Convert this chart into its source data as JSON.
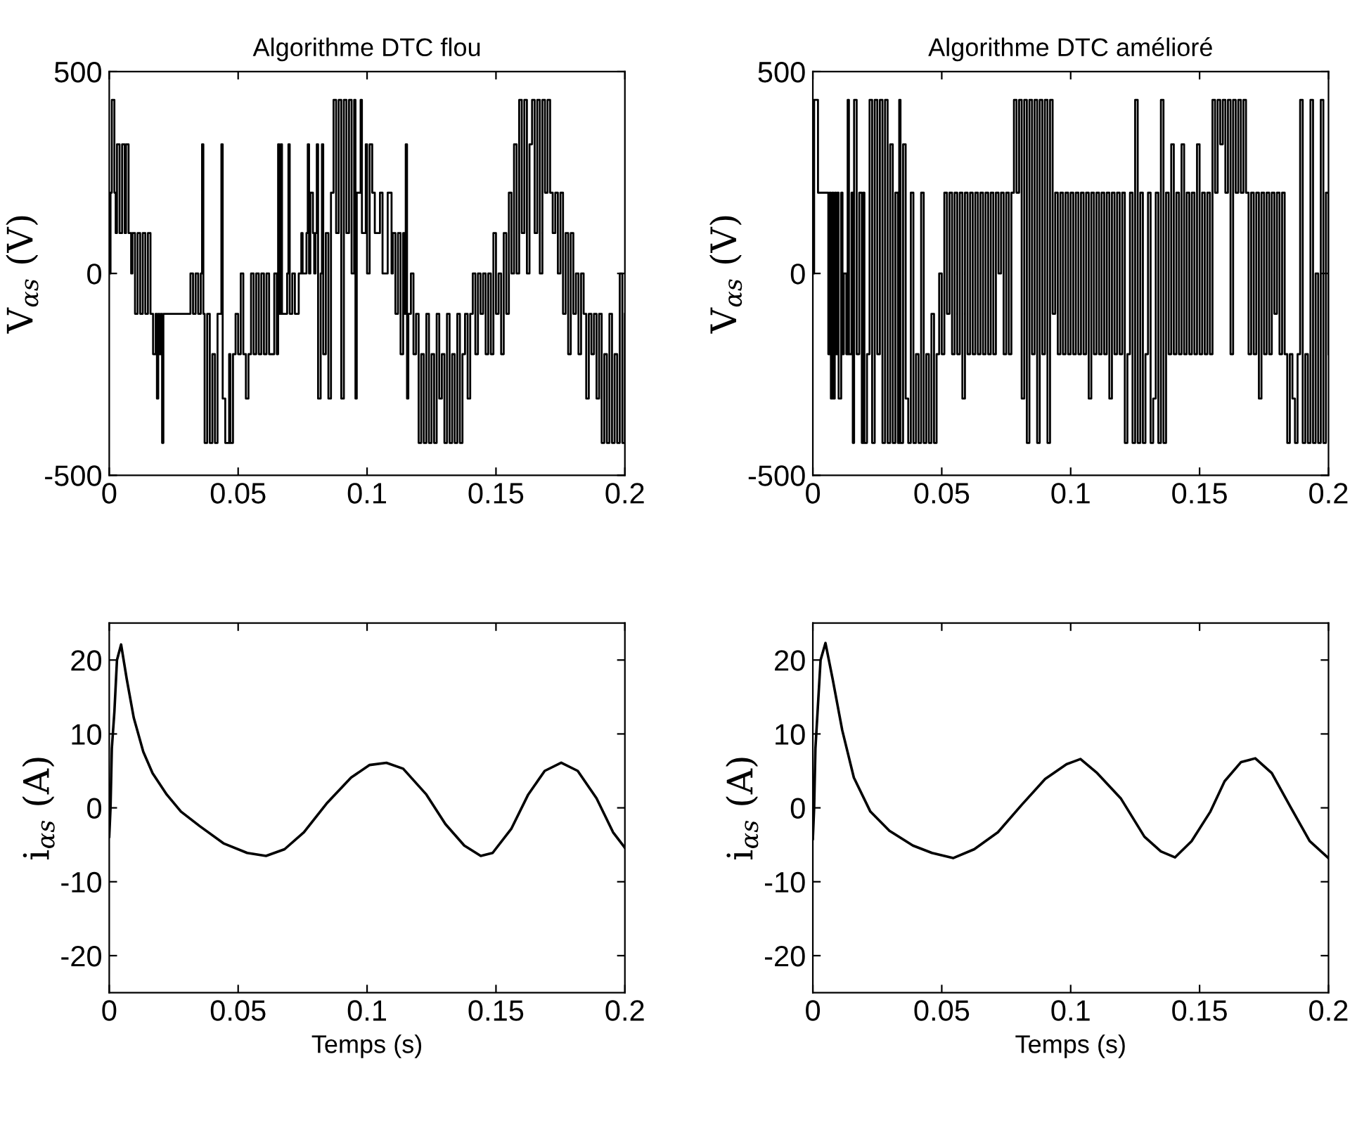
{
  "chart_data": [
    {
      "type": "step",
      "title": "Algorithme DTC flou",
      "ylabel": "V$_{αs}$ (V)",
      "color": "#000000",
      "xlim": [
        0,
        0.2
      ],
      "ylim": [
        -500,
        500
      ],
      "xticks": [
        0,
        0.05,
        0.1,
        0.15,
        0.2
      ],
      "yticks": [
        -500,
        0,
        500
      ],
      "grid": false,
      "x": [
        0,
        0.0005,
        0.001,
        0.002,
        0.0025,
        0.003,
        0.004,
        0.005,
        0.006,
        0.0065,
        0.0075,
        0.0085,
        0.009,
        0.01,
        0.011,
        0.012,
        0.013,
        0.014,
        0.015,
        0.016,
        0.017,
        0.018,
        0.0185,
        0.019,
        0.0195,
        0.02,
        0.0205,
        0.021,
        0.0315,
        0.0325,
        0.0335,
        0.0345,
        0.0355,
        0.036,
        0.0365,
        0.037,
        0.038,
        0.039,
        0.04,
        0.041,
        0.042,
        0.0435,
        0.044,
        0.045,
        0.0465,
        0.047,
        0.048,
        0.049,
        0.05,
        0.051,
        0.052,
        0.053,
        0.054,
        0.055,
        0.056,
        0.057,
        0.058,
        0.059,
        0.06,
        0.061,
        0.062,
        0.064,
        0.065,
        0.0655,
        0.066,
        0.0665,
        0.067,
        0.069,
        0.0695,
        0.07,
        0.071,
        0.072,
        0.0735,
        0.0745,
        0.075,
        0.0765,
        0.077,
        0.0775,
        0.078,
        0.079,
        0.0795,
        0.08,
        0.0805,
        0.081,
        0.082,
        0.0825,
        0.083,
        0.084,
        0.085,
        0.086,
        0.087,
        0.088,
        0.089,
        0.09,
        0.091,
        0.092,
        0.093,
        0.094,
        0.095,
        0.0955,
        0.096,
        0.0975,
        0.098,
        0.0995,
        0.1,
        0.101,
        0.102,
        0.103,
        0.105,
        0.106,
        0.108,
        0.1095,
        0.11,
        0.111,
        0.112,
        0.113,
        0.114,
        0.1145,
        0.115,
        0.1155,
        0.116,
        0.117,
        0.118,
        0.119,
        0.12,
        0.121,
        0.122,
        0.123,
        0.124,
        0.125,
        0.126,
        0.127,
        0.128,
        0.129,
        0.13,
        0.131,
        0.132,
        0.133,
        0.134,
        0.135,
        0.136,
        0.137,
        0.138,
        0.139,
        0.14,
        0.141,
        0.142,
        0.143,
        0.144,
        0.145,
        0.146,
        0.147,
        0.148,
        0.149,
        0.15,
        0.151,
        0.152,
        0.153,
        0.154,
        0.155,
        0.156,
        0.157,
        0.158,
        0.159,
        0.16,
        0.161,
        0.162,
        0.163,
        0.164,
        0.165,
        0.166,
        0.167,
        0.168,
        0.169,
        0.17,
        0.171,
        0.172,
        0.173,
        0.174,
        0.175,
        0.176,
        0.177,
        0.178,
        0.179,
        0.18,
        0.181,
        0.182,
        0.183,
        0.184,
        0.185,
        0.186,
        0.187,
        0.188,
        0.189,
        0.19,
        0.191,
        0.192,
        0.193,
        0.194,
        0.195,
        0.196,
        0.197,
        0.198,
        0.199,
        0.2
      ],
      "values": [
        0,
        200,
        430,
        200,
        100,
        320,
        100,
        320,
        100,
        320,
        100,
        0,
        100,
        -100,
        100,
        -100,
        100,
        -100,
        100,
        -100,
        -200,
        -100,
        -310,
        -100,
        -200,
        -100,
        -420,
        -100,
        0,
        -100,
        0,
        -100,
        0,
        320,
        -100,
        -420,
        -100,
        -420,
        -200,
        -420,
        -100,
        320,
        -310,
        -420,
        -200,
        -420,
        -200,
        -100,
        -200,
        0,
        -200,
        -310,
        -200,
        0,
        -200,
        0,
        -200,
        0,
        -200,
        0,
        -200,
        0,
        -200,
        320,
        -100,
        320,
        -100,
        0,
        320,
        -100,
        0,
        -100,
        0,
        100,
        0,
        100,
        320,
        0,
        200,
        100,
        0,
        100,
        320,
        -310,
        0,
        320,
        -200,
        100,
        -310,
        200,
        430,
        100,
        430,
        -310,
        430,
        100,
        430,
        0,
        430,
        -310,
        200,
        430,
        100,
        320,
        0,
        320,
        200,
        100,
        200,
        0,
        200,
        0,
        100,
        -100,
        100,
        -200,
        100,
        -100,
        320,
        -310,
        -100,
        0,
        -200,
        -100,
        -420,
        -200,
        -420,
        -100,
        -420,
        -200,
        -420,
        -100,
        -310,
        -200,
        -420,
        -100,
        -420,
        -200,
        -420,
        -100,
        -420,
        -200,
        -100,
        -310,
        -100,
        0,
        -200,
        0,
        -100,
        0,
        -200,
        0,
        -200,
        100,
        -100,
        0,
        -200,
        100,
        -100,
        200,
        0,
        320,
        0,
        430,
        100,
        430,
        0,
        320,
        430,
        100,
        430,
        0,
        430,
        200,
        430,
        200,
        100,
        200,
        0,
        200,
        -100,
        100,
        -200,
        100,
        -100,
        0,
        -200,
        0,
        -100,
        -310,
        -100,
        -200,
        -100,
        -310,
        -100,
        -420,
        -200,
        -420,
        -100,
        -420,
        -200,
        -420,
        0,
        -420,
        -100
      ]
    },
    {
      "type": "step",
      "title": "Algorithme DTC amélioré",
      "ylabel": "V$_{αs}$ (V)",
      "color": "#000000",
      "xlim": [
        0,
        0.2
      ],
      "ylim": [
        -500,
        500
      ],
      "xticks": [
        0,
        0.05,
        0.1,
        0.15,
        0.2
      ],
      "yticks": [
        -500,
        0,
        500
      ],
      "grid": false,
      "x": [
        0,
        0.0005,
        0.002,
        0.006,
        0.0065,
        0.007,
        0.0075,
        0.008,
        0.0085,
        0.009,
        0.0095,
        0.01,
        0.011,
        0.0115,
        0.012,
        0.013,
        0.0135,
        0.014,
        0.015,
        0.0155,
        0.016,
        0.017,
        0.018,
        0.019,
        0.0195,
        0.02,
        0.021,
        0.022,
        0.023,
        0.024,
        0.025,
        0.026,
        0.027,
        0.028,
        0.029,
        0.03,
        0.031,
        0.032,
        0.033,
        0.0335,
        0.034,
        0.035,
        0.036,
        0.037,
        0.038,
        0.039,
        0.04,
        0.041,
        0.042,
        0.043,
        0.044,
        0.045,
        0.046,
        0.047,
        0.048,
        0.049,
        0.05,
        0.051,
        0.052,
        0.053,
        0.054,
        0.055,
        0.056,
        0.057,
        0.058,
        0.059,
        0.06,
        0.061,
        0.062,
        0.063,
        0.064,
        0.065,
        0.066,
        0.067,
        0.068,
        0.069,
        0.07,
        0.071,
        0.072,
        0.073,
        0.074,
        0.075,
        0.076,
        0.077,
        0.078,
        0.079,
        0.08,
        0.081,
        0.082,
        0.083,
        0.084,
        0.085,
        0.086,
        0.087,
        0.088,
        0.089,
        0.09,
        0.091,
        0.092,
        0.093,
        0.094,
        0.095,
        0.096,
        0.097,
        0.098,
        0.099,
        0.1,
        0.101,
        0.102,
        0.103,
        0.104,
        0.105,
        0.106,
        0.107,
        0.108,
        0.109,
        0.11,
        0.111,
        0.112,
        0.113,
        0.114,
        0.115,
        0.116,
        0.117,
        0.118,
        0.119,
        0.12,
        0.121,
        0.122,
        0.123,
        0.124,
        0.125,
        0.126,
        0.127,
        0.128,
        0.129,
        0.13,
        0.131,
        0.132,
        0.133,
        0.134,
        0.135,
        0.136,
        0.137,
        0.138,
        0.139,
        0.14,
        0.141,
        0.142,
        0.143,
        0.144,
        0.145,
        0.146,
        0.147,
        0.148,
        0.149,
        0.15,
        0.151,
        0.152,
        0.153,
        0.154,
        0.155,
        0.156,
        0.157,
        0.158,
        0.159,
        0.16,
        0.161,
        0.162,
        0.163,
        0.164,
        0.165,
        0.166,
        0.167,
        0.168,
        0.169,
        0.17,
        0.171,
        0.172,
        0.173,
        0.174,
        0.175,
        0.176,
        0.177,
        0.178,
        0.179,
        0.18,
        0.181,
        0.182,
        0.183,
        0.184,
        0.185,
        0.186,
        0.187,
        0.188,
        0.189,
        0.19,
        0.191,
        0.192,
        0.193,
        0.194,
        0.195,
        0.196,
        0.197,
        0.198,
        0.199,
        0.2
      ],
      "values": [
        0,
        430,
        200,
        -200,
        200,
        -310,
        200,
        -310,
        200,
        -200,
        200,
        -310,
        200,
        -200,
        0,
        -200,
        430,
        -200,
        200,
        -420,
        430,
        -200,
        200,
        -420,
        200,
        -420,
        -200,
        430,
        -420,
        430,
        -200,
        430,
        -420,
        430,
        -420,
        320,
        -420,
        200,
        -420,
        430,
        -420,
        320,
        -310,
        -420,
        200,
        -420,
        -200,
        -420,
        200,
        -420,
        -200,
        -420,
        -100,
        -420,
        -200,
        0,
        -200,
        200,
        -100,
        200,
        -200,
        200,
        -200,
        200,
        -310,
        200,
        -200,
        200,
        -200,
        200,
        -200,
        200,
        -200,
        200,
        -200,
        200,
        -200,
        200,
        0,
        200,
        -200,
        200,
        -200,
        200,
        430,
        200,
        430,
        -310,
        430,
        -420,
        430,
        -200,
        430,
        -420,
        430,
        -200,
        430,
        -420,
        430,
        -100,
        200,
        -200,
        200,
        -200,
        200,
        -200,
        200,
        -200,
        200,
        -200,
        200,
        -200,
        200,
        -310,
        200,
        -200,
        200,
        -200,
        200,
        -200,
        200,
        -310,
        200,
        -200,
        200,
        -200,
        200,
        -420,
        -200,
        200,
        -420,
        430,
        -420,
        200,
        -420,
        -200,
        200,
        -420,
        -310,
        200,
        -420,
        430,
        -420,
        200,
        -200,
        320,
        -200,
        200,
        -200,
        320,
        -200,
        200,
        -200,
        200,
        -200,
        320,
        -200,
        200,
        -200,
        200,
        -200,
        430,
        200,
        430,
        320,
        430,
        200,
        430,
        -200,
        430,
        200,
        430,
        200,
        430,
        200,
        -200,
        200,
        -200,
        200,
        -310,
        200,
        -200,
        200,
        -200,
        200,
        -100,
        200,
        -200,
        200,
        -200,
        -420,
        -200,
        -310,
        -420,
        -200,
        430,
        -420,
        -200,
        -420,
        430,
        -420,
        0,
        -420,
        430,
        -420,
        200,
        -200
      ]
    },
    {
      "type": "line",
      "xlabel": "Temps (s)",
      "ylabel": "i$_{αs}$ (A)",
      "color": "#000000",
      "xlim": [
        0,
        0.2
      ],
      "ylim": [
        -25,
        25
      ],
      "xticks": [
        0,
        0.05,
        0.1,
        0.15,
        0.2
      ],
      "yticks": [
        -20,
        -10,
        0,
        10,
        20
      ],
      "grid": false,
      "x": [
        0,
        0.0005,
        0.001,
        0.002,
        0.003,
        0.0046,
        0.0068,
        0.0095,
        0.0132,
        0.0168,
        0.0223,
        0.0278,
        0.0352,
        0.0443,
        0.0535,
        0.0608,
        0.068,
        0.0755,
        0.0846,
        0.0938,
        0.101,
        0.1075,
        0.114,
        0.123,
        0.1304,
        0.1377,
        0.1441,
        0.1487,
        0.156,
        0.1625,
        0.1689,
        0.1753,
        0.1817,
        0.189,
        0.1954,
        0.2
      ],
      "values": [
        -3.9,
        0,
        8,
        13,
        20,
        22.1,
        17.4,
        12.2,
        7.6,
        4.7,
        1.8,
        -0.5,
        -2.5,
        -4.8,
        -6.1,
        -6.5,
        -5.6,
        -3.3,
        0.7,
        4.1,
        5.8,
        6.1,
        5.3,
        1.8,
        -2.2,
        -5.1,
        -6.5,
        -6.1,
        -2.8,
        1.8,
        5.0,
        6.1,
        5.0,
        1.3,
        -3.3,
        -5.4
      ]
    },
    {
      "type": "line",
      "xlabel": "Temps (s)",
      "ylabel": "i$_{αs}$ (A)",
      "color": "#000000",
      "xlim": [
        0,
        0.2
      ],
      "ylim": [
        -25,
        25
      ],
      "xticks": [
        0,
        0.05,
        0.1,
        0.15,
        0.2
      ],
      "yticks": [
        -20,
        -10,
        0,
        10,
        20
      ],
      "grid": false,
      "x": [
        0,
        0.0005,
        0.001,
        0.002,
        0.003,
        0.0049,
        0.0077,
        0.0114,
        0.0159,
        0.0223,
        0.0297,
        0.0388,
        0.0462,
        0.0544,
        0.0626,
        0.0718,
        0.081,
        0.0901,
        0.0984,
        0.1038,
        0.1103,
        0.1194,
        0.1286,
        0.135,
        0.1405,
        0.1469,
        0.1542,
        0.1597,
        0.1661,
        0.1716,
        0.178,
        0.1853,
        0.1927,
        0.2
      ],
      "values": [
        -4.2,
        0,
        8,
        14,
        20,
        22.3,
        17.4,
        10.5,
        4.1,
        -0.5,
        -3.1,
        -5.1,
        -6.1,
        -6.8,
        -5.6,
        -3.3,
        0.4,
        3.9,
        5.9,
        6.6,
        4.7,
        1.3,
        -3.9,
        -5.9,
        -6.7,
        -4.5,
        -0.5,
        3.6,
        6.2,
        6.7,
        4.7,
        0.1,
        -4.5,
        -6.8
      ]
    }
  ]
}
